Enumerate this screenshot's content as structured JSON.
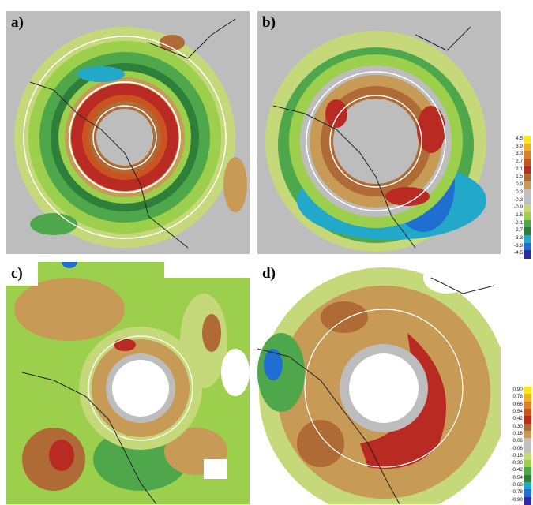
{
  "panels": [
    {
      "label": "a)"
    },
    {
      "label": "b)"
    },
    {
      "label": "c)"
    },
    {
      "label": "d)"
    }
  ],
  "colorbar_top": {
    "ticks": [
      "4.5",
      "3.9",
      "3.3",
      "2.7",
      "2.1",
      "1.5",
      "0.9",
      "0.3",
      "-0.3",
      "-0.9",
      "-1.5",
      "-2.1",
      "-2.7",
      "-3.3",
      "-3.9",
      "-4.5"
    ],
    "colors": [
      "#f7e817",
      "#f0b020",
      "#d98224",
      "#c9541f",
      "#b82a22",
      "#b06a35",
      "#c79a55",
      "#bfbfbf",
      "#bfbfbf",
      "#c6d97a",
      "#9bcf4c",
      "#4ea84b",
      "#2d7f3a",
      "#22a8c8",
      "#1f6fd0",
      "#2a2aa8"
    ]
  },
  "colorbar_bottom": {
    "ticks": [
      "0.90",
      "0.78",
      "0.66",
      "0.54",
      "0.42",
      "0.30",
      "0.18",
      "0.06",
      "-0.06",
      "-0.18",
      "-0.30",
      "-0.42",
      "-0.54",
      "-0.66",
      "-0.78",
      "-0.90"
    ],
    "colors": [
      "#f7e817",
      "#f0b020",
      "#d98224",
      "#c9541f",
      "#b82a22",
      "#b06a35",
      "#c79a55",
      "#bfbfbf",
      "#bfbfbf",
      "#c6d97a",
      "#9bcf4c",
      "#4ea84b",
      "#2d7f3a",
      "#22a8c8",
      "#1f6fd0",
      "#2a2aa8"
    ]
  }
}
